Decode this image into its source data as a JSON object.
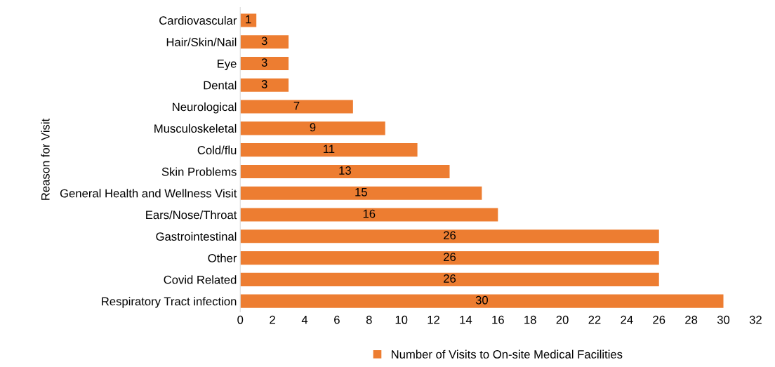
{
  "chart_data": {
    "type": "bar",
    "orientation": "horizontal",
    "ylabel": "Reason for Visit",
    "categories": [
      "Cardiovascular",
      "Hair/Skin/Nail",
      "Eye",
      "Dental",
      "Neurological",
      "Musculoskeletal",
      "Cold/flu",
      "Skin Problems",
      "General Health and Wellness Visit",
      "Ears/Nose/Throat",
      "Gastrointestinal",
      "Other",
      "Covid Related",
      "Respiratory Tract infection"
    ],
    "series": [
      {
        "name": "Number of Visits to On-site Medical Facilities",
        "color": "#ed7d31",
        "values": [
          1,
          3,
          3,
          3,
          7,
          9,
          11,
          13,
          15,
          16,
          26,
          26,
          26,
          30
        ]
      }
    ],
    "xlim": [
      0,
      32
    ],
    "xticks": [
      0,
      2,
      4,
      6,
      8,
      10,
      12,
      14,
      16,
      18,
      20,
      22,
      24,
      26,
      28,
      30,
      32
    ],
    "data_labels": true,
    "grid": false,
    "legend": "bottom"
  }
}
